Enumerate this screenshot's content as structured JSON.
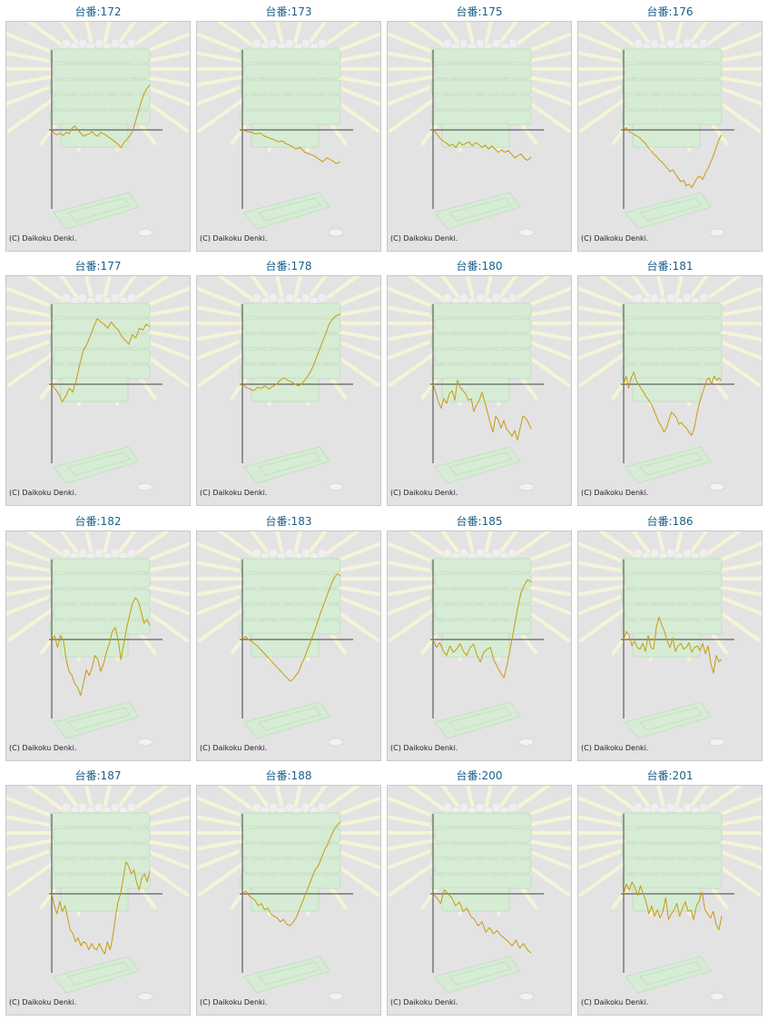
{
  "copyright": "(C) Daikoku Denki.",
  "colors": {
    "line": "#c89a10",
    "axis": "#404040",
    "title": "#1a5f8a",
    "panel_bg": "#e3e3e3",
    "border": "#c8c8c8"
  },
  "chart_data": [
    {
      "type": "line",
      "title": "台番:172",
      "values": [
        0,
        -5,
        -6,
        -4,
        -7,
        -3,
        -5,
        2,
        5,
        0,
        -4,
        -8,
        -6,
        -5,
        -2,
        -6,
        -8,
        -3,
        -5,
        -7,
        -10,
        -12,
        -15,
        -18,
        -22,
        -16,
        -12,
        -8,
        -2,
        10,
        22,
        35,
        45,
        52,
        56
      ]
    },
    {
      "type": "line",
      "title": "台番:173",
      "values": [
        0,
        -2,
        -3,
        -5,
        -4,
        -8,
        -10,
        -12,
        -15,
        -14,
        -18,
        -20,
        -24,
        -22,
        -28,
        -30,
        -32,
        -36,
        -40,
        -35,
        -38,
        -42,
        -40
      ]
    },
    {
      "type": "line",
      "title": "台番:175",
      "values": [
        0,
        -4,
        -10,
        -14,
        -16,
        -20,
        -18,
        -22,
        -15,
        -19,
        -17,
        -15,
        -20,
        -16,
        -18,
        -22,
        -19,
        -24,
        -20,
        -24,
        -28,
        -25,
        -28,
        -26,
        -30,
        -35,
        -32,
        -30,
        -36,
        -38,
        -34
      ]
    },
    {
      "type": "line",
      "title": "台番:176",
      "values": [
        0,
        3,
        -2,
        -4,
        -6,
        -8,
        -10,
        -14,
        -17,
        -22,
        -26,
        -30,
        -33,
        -37,
        -40,
        -44,
        -48,
        -52,
        -50,
        -55,
        -60,
        -65,
        -63,
        -70,
        -68,
        -72,
        -66,
        -60,
        -58,
        -62,
        -54,
        -48,
        -40,
        -32,
        -22,
        -12,
        -6
      ]
    },
    {
      "type": "line",
      "title": "台番:177",
      "values": [
        0,
        -6,
        -12,
        -22,
        -15,
        -5,
        -10,
        5,
        25,
        42,
        50,
        60,
        72,
        82,
        78,
        75,
        70,
        78,
        72,
        68,
        60,
        55,
        50,
        62,
        58,
        70,
        68,
        75,
        72
      ]
    },
    {
      "type": "line",
      "title": "台番:178",
      "values": [
        0,
        -4,
        -6,
        -8,
        -4,
        -5,
        -2,
        -6,
        -3,
        0,
        5,
        8,
        5,
        3,
        0,
        -2,
        2,
        8,
        15,
        25,
        38,
        50,
        62,
        75,
        82,
        86,
        88
      ]
    },
    {
      "type": "line",
      "title": "台番:180",
      "values": [
        0,
        -10,
        -22,
        -30,
        -18,
        -24,
        -12,
        -8,
        -20,
        5,
        -4,
        -8,
        -12,
        -20,
        -18,
        -34,
        -26,
        -20,
        -10,
        -22,
        -35,
        -48,
        -60,
        -40,
        -45,
        -55,
        -45,
        -56,
        -60,
        -65,
        -58,
        -70,
        -55,
        -40,
        -42,
        -48,
        -56
      ]
    },
    {
      "type": "line",
      "title": "台番:181",
      "values": [
        0,
        10,
        -5,
        8,
        15,
        5,
        0,
        -6,
        -10,
        -16,
        -20,
        -25,
        -32,
        -40,
        -48,
        -52,
        -60,
        -55,
        -45,
        -35,
        -38,
        -42,
        -50,
        -48,
        -52,
        -55,
        -60,
        -64,
        -56,
        -40,
        -25,
        -15,
        -5,
        5,
        8,
        0,
        10,
        5,
        8,
        4
      ]
    },
    {
      "type": "line",
      "title": "台番:182",
      "values": [
        0,
        5,
        -10,
        5,
        0,
        -25,
        -40,
        -45,
        -55,
        -60,
        -70,
        -55,
        -38,
        -45,
        -35,
        -20,
        -25,
        -40,
        -30,
        -15,
        -5,
        10,
        15,
        0,
        -25,
        -5,
        15,
        30,
        45,
        52,
        48,
        35,
        20,
        25,
        18
      ]
    },
    {
      "type": "line",
      "title": "台番:183",
      "values": [
        0,
        4,
        0,
        -2,
        -5,
        -8,
        -12,
        -16,
        -20,
        -24,
        -28,
        -32,
        -36,
        -40,
        -44,
        -48,
        -52,
        -50,
        -45,
        -40,
        -30,
        -22,
        -12,
        -2,
        8,
        18,
        30,
        40,
        50,
        60,
        70,
        78,
        82,
        80
      ]
    },
    {
      "type": "line",
      "title": "台番:185",
      "values": [
        0,
        -10,
        -4,
        -14,
        -20,
        -8,
        -16,
        -12,
        -5,
        -15,
        -20,
        -10,
        -6,
        -20,
        -28,
        -16,
        -12,
        -10,
        -26,
        -34,
        -42,
        -48,
        -30,
        -8,
        15,
        38,
        58,
        68,
        75,
        72
      ]
    },
    {
      "type": "line",
      "title": "台番:186",
      "values": [
        0,
        10,
        5,
        -8,
        -2,
        -10,
        -12,
        -5,
        -15,
        5,
        -10,
        -12,
        15,
        28,
        18,
        10,
        -2,
        -10,
        2,
        -15,
        -8,
        -5,
        -12,
        -10,
        -4,
        -16,
        -10,
        -8,
        -14,
        -5,
        -18,
        -8,
        -30,
        -42,
        -20,
        -28,
        -25
      ]
    },
    {
      "type": "line",
      "title": "台番:187",
      "values": [
        0,
        -15,
        -25,
        -10,
        -22,
        -15,
        -30,
        -45,
        -50,
        -60,
        -55,
        -65,
        -60,
        -62,
        -70,
        -62,
        -68,
        -70,
        -62,
        -70,
        -75,
        -60,
        -70,
        -55,
        -30,
        -10,
        0,
        20,
        40,
        35,
        25,
        30,
        15,
        5,
        20,
        25,
        15,
        28
      ]
    },
    {
      "type": "line",
      "title": "台番:188",
      "values": [
        0,
        4,
        -2,
        -5,
        -8,
        -15,
        -12,
        -20,
        -18,
        -25,
        -28,
        -30,
        -35,
        -32,
        -38,
        -40,
        -36,
        -30,
        -20,
        -10,
        0,
        10,
        20,
        30,
        35,
        45,
        55,
        62,
        72,
        80,
        86,
        90
      ]
    },
    {
      "type": "line",
      "title": "台番:200",
      "values": [
        0,
        -5,
        -12,
        5,
        0,
        -5,
        -15,
        -10,
        -22,
        -18,
        -28,
        -32,
        -40,
        -35,
        -48,
        -42,
        -50,
        -46,
        -52,
        -56,
        -60,
        -65,
        -58,
        -68,
        -62,
        -70,
        -74
      ]
    },
    {
      "type": "line",
      "title": "台番:201",
      "values": [
        0,
        12,
        5,
        15,
        8,
        -2,
        10,
        0,
        -10,
        -25,
        -15,
        -28,
        -20,
        -30,
        -22,
        -5,
        -32,
        -25,
        -20,
        -12,
        -28,
        -18,
        -10,
        -22,
        -20,
        -32,
        -15,
        -8,
        2,
        -20,
        -25,
        -30,
        -22,
        -38,
        -45,
        -28
      ]
    }
  ]
}
